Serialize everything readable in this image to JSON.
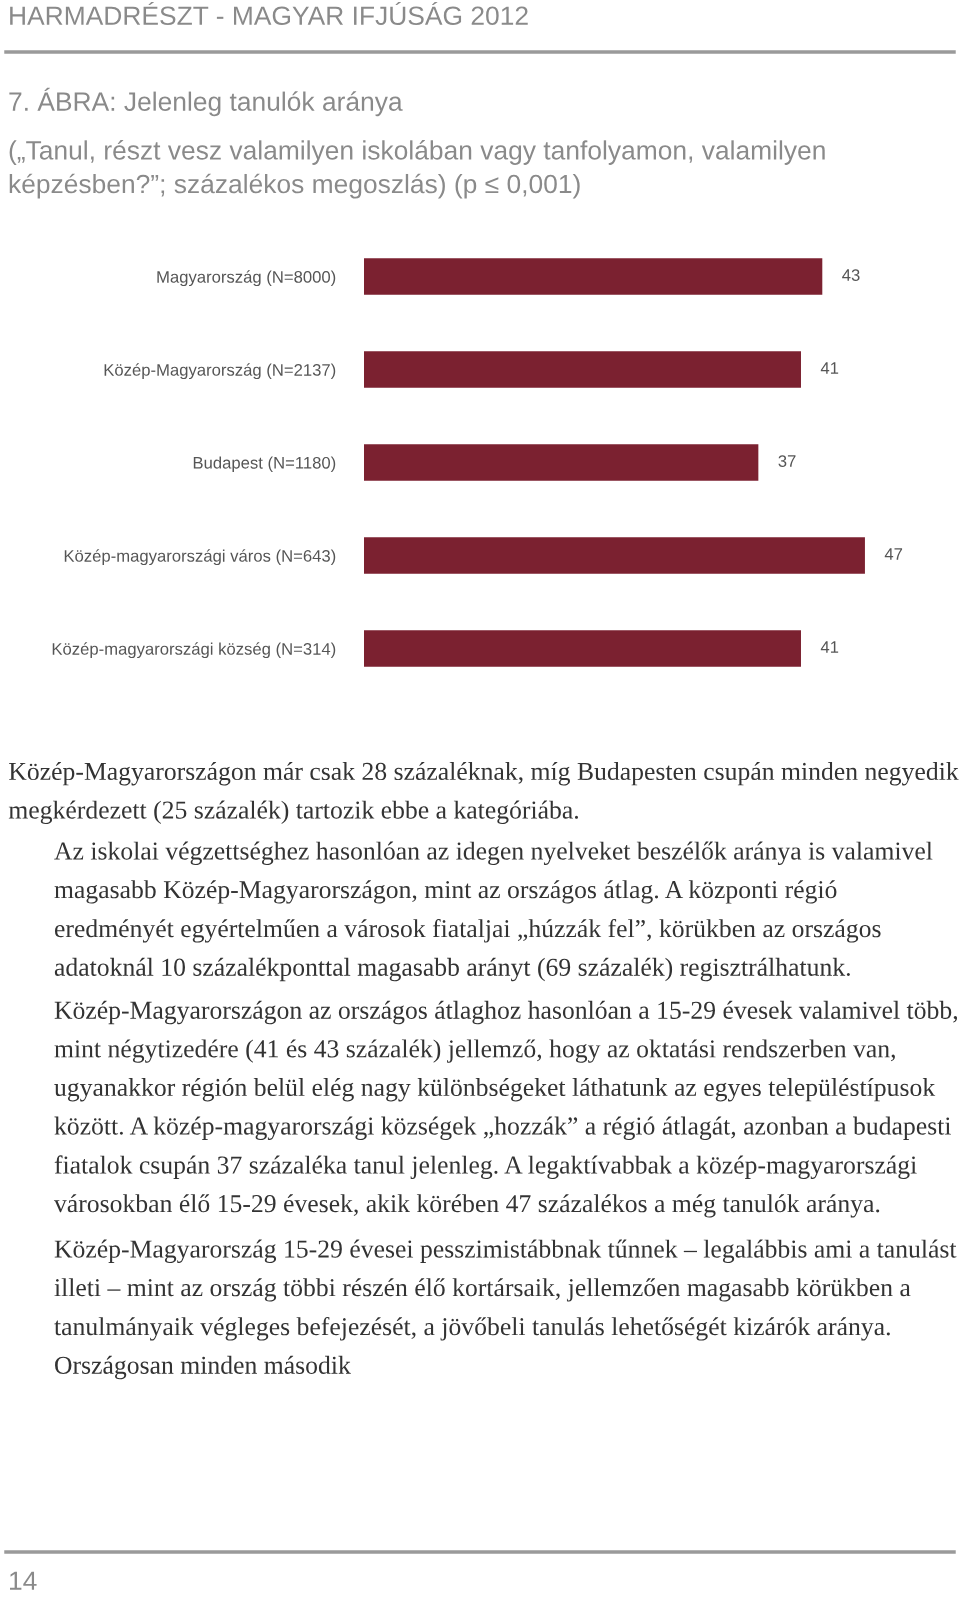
{
  "chart_data": {
    "type": "bar",
    "orientation": "horizontal",
    "title": "7. ÁBRA: Jelenleg tanulók aránya",
    "subtitle": "(„Tanul, részt vesz valamilyen iskolában vagy tanfolyamon, valamilyen képzésben?”; százalékos megoszlás) (p ≤ 0,001)",
    "categories": [
      "Magyarország (N=8000)",
      "Közép-Magyarország (N=2137)",
      "Budapest (N=1180)",
      "Közép-magyarországi város (N=643)",
      "Közép-magyarországi község (N=314)"
    ],
    "values": [
      43,
      41,
      37,
      47,
      41
    ],
    "color": "#7b2130",
    "data_labels": true,
    "tick_labels": "y",
    "grid": false,
    "legend": false,
    "annotations": [
      "HARMADRÉSZT - MAGYAR IFJÚSÁG 2012",
      "Közép-Magyarországon már csak 28 százaléknak, míg Budapesten csupán minden negyedik megkérdezett (25 százalék) tartozik ebbe a kategóriába.",
      "Az iskolai végzettséghez hasonlóan az idegen nyelveket beszélők aránya is valamivel magasabb Közép-Magyarországon, mint az országos átlag. A központi régió eredményét egyértelműen a városok fiataljai „húzzák fel”, körükben az országos adatoknál 10 százalékponttal magasabb arányt (69 százalék) regisztrálhatunk.",
      "Közép-Magyarországon az országos átlaghoz hasonlóan a 15-29 évesek valamivel több, mint négytizedére (41 és 43 százalék) jellemző, hogy az oktatási rendszerben van, ugyanakkor régión belül elég nagy különbségeket láthatunk az egyes településtípusok között. A közép-magyarországi községek „hozzák” a régió átlagát, azonban a budapesti fiatalok csupán 37 százaléka tanul jelenleg. A legaktívabbak a közép-magyarországi városokban élő 15-29 évesek, akik körében 47 százalékos a még tanulók aránya.",
      "Közép-Magyarország 15-29 évesei pesszimistábbnak tűnnek – legalábbis ami a tanulást illeti – mint az ország többi részén élő kortársaik, jellemzően magasabb körükben a tanulmányaik végleges befejezését, a jövőbeli tanulás lehetőségét kizárók aránya. Országosan minden második",
      "14"
    ]
  }
}
